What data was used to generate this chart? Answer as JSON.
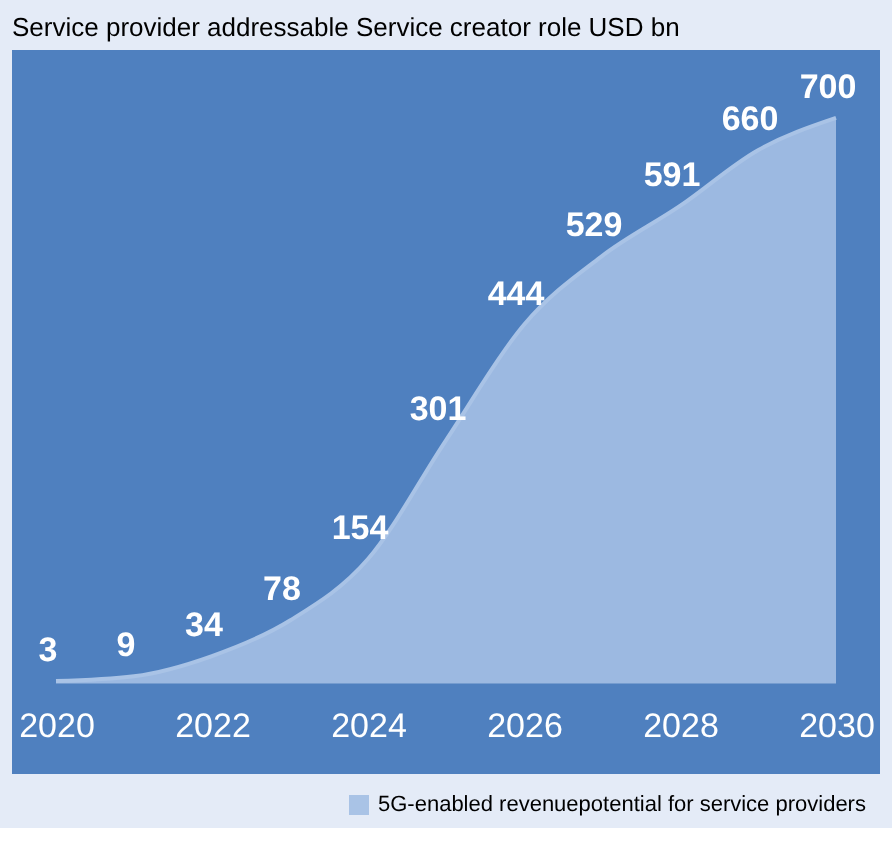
{
  "chart_data": {
    "type": "area",
    "title": "Service provider addressable  Service creator role USD bn",
    "x": [
      2020,
      2021,
      2022,
      2023,
      2024,
      2025,
      2026,
      2027,
      2028,
      2029,
      2030
    ],
    "xlim": [
      2020,
      2030
    ],
    "xticks": [
      2020,
      2022,
      2024,
      2026,
      2028,
      2030
    ],
    "series": [
      {
        "name": "5G-enabled revenuepotential for service providers",
        "color": "#a9c3e6",
        "values": [
          3,
          9,
          34,
          78,
          154,
          301,
          444,
          529,
          591,
          660,
          700
        ]
      }
    ],
    "data_labels": true,
    "grid": false,
    "legend": "bottom right"
  }
}
